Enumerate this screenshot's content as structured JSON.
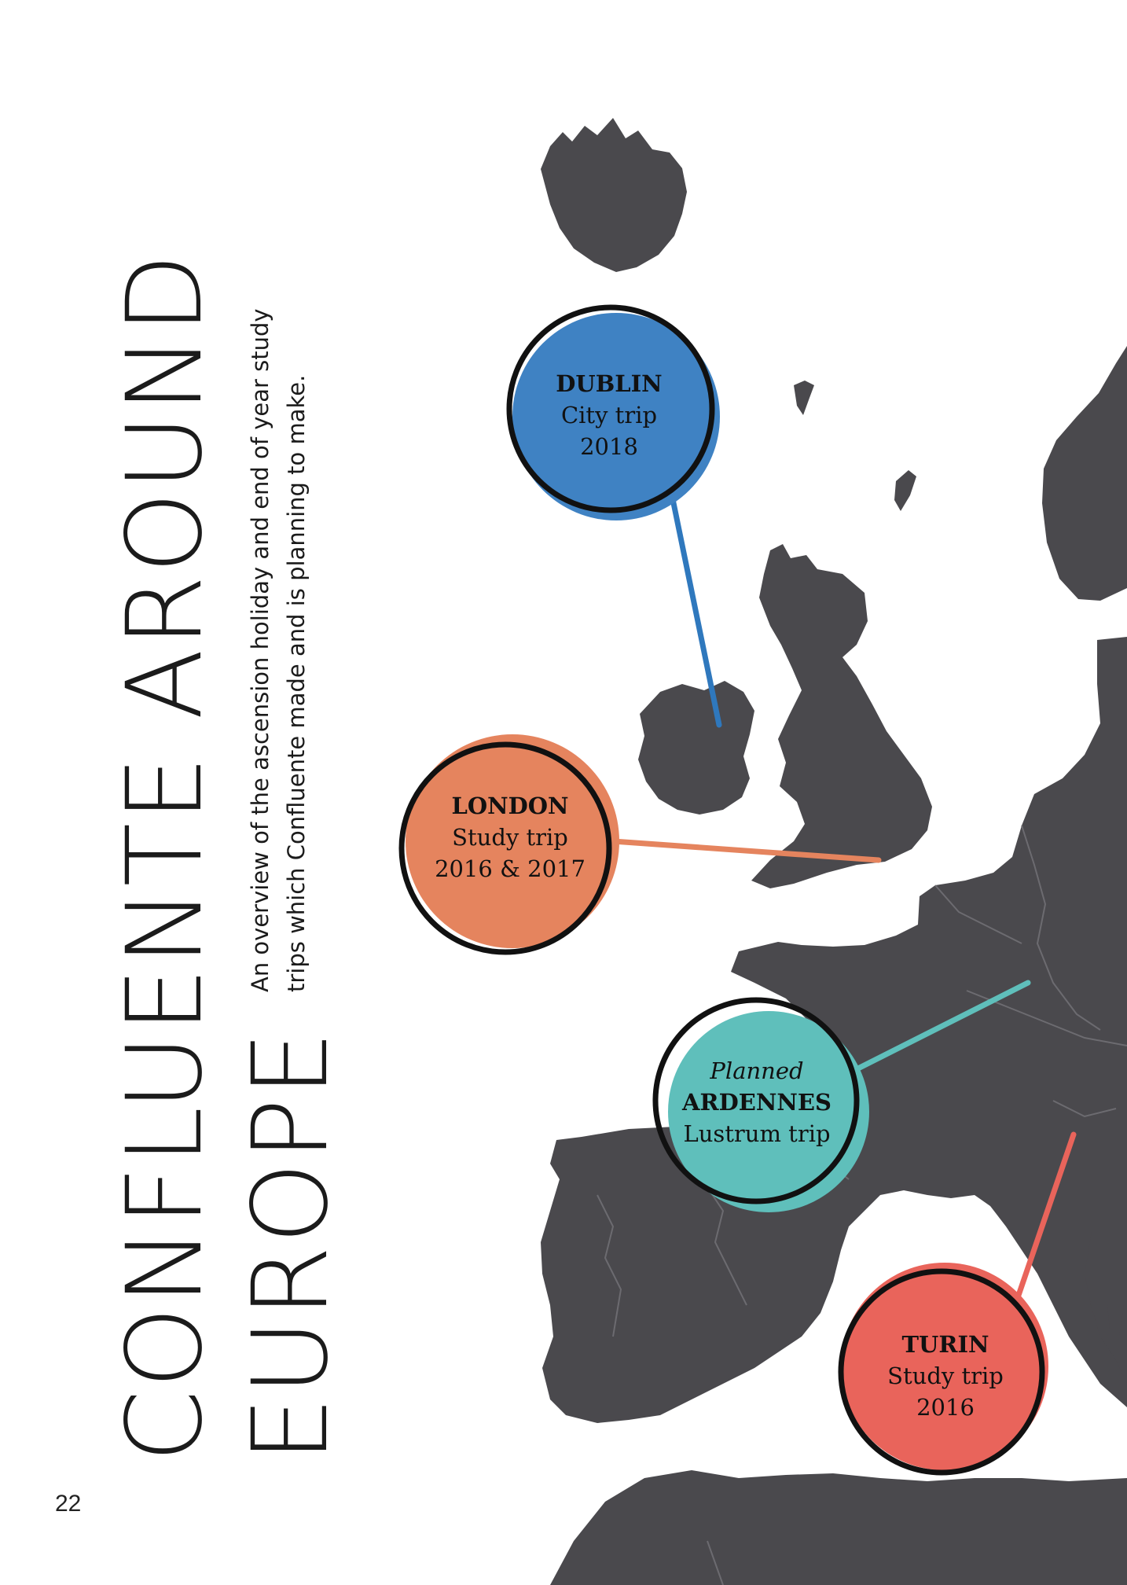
{
  "title": {
    "line1": "CONFLUENTE  AROUND",
    "line2": "EUROPE"
  },
  "subtitle": "An overview of  the ascension holiday and end of year study trips which Confluente made and is planning to make.",
  "page_number": "22",
  "colors": {
    "land": "#4a494d",
    "border": "#6c6b70",
    "dublin": "#3f82c3",
    "dublin_line": "#2f78bd",
    "london": "#e5845e",
    "ardennes": "#5fbfbb",
    "turin": "#e9645b",
    "outline": "#111111"
  },
  "trips": {
    "dublin": {
      "name": "DUBLIN",
      "line1": "City trip",
      "line2": "2018"
    },
    "london": {
      "name": "LONDON",
      "line1": "Study trip",
      "line2": "2016 & 2017"
    },
    "ardennes": {
      "status": "Planned",
      "name": "ARDENNES",
      "line1": "Lustrum trip"
    },
    "turin": {
      "name": "TURIN",
      "line1": "Study trip",
      "line2": "2016"
    }
  }
}
